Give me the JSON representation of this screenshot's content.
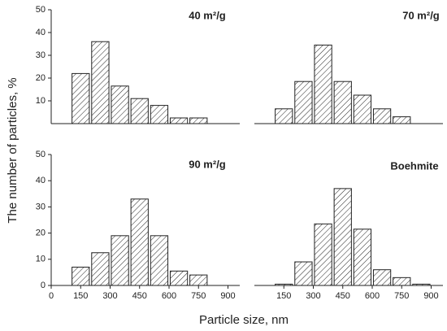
{
  "xlabel": "Particle size, nm",
  "ylabel": "The number of particles, %",
  "chart_data": [
    {
      "type": "bar",
      "title": "40 m²/g",
      "x": [
        150,
        250,
        350,
        450,
        550,
        650,
        750
      ],
      "values": [
        22,
        36,
        16.5,
        11,
        8,
        2.5,
        2.5
      ],
      "xlim": [
        0,
        960
      ],
      "ylim": [
        0,
        50
      ],
      "yticks": [
        10,
        20,
        30,
        40,
        50
      ]
    },
    {
      "type": "bar",
      "title": "70 m²/g",
      "x": [
        150,
        250,
        350,
        450,
        550,
        650,
        750
      ],
      "values": [
        6.5,
        18.5,
        34.5,
        18.5,
        12.5,
        6.5,
        3
      ],
      "xlim": [
        0,
        960
      ],
      "ylim": [
        0,
        50
      ]
    },
    {
      "type": "bar",
      "title": "90 m²/g",
      "x": [
        150,
        250,
        350,
        450,
        550,
        650,
        750
      ],
      "values": [
        7,
        12.5,
        19,
        33,
        19,
        5.5,
        4
      ],
      "xlim": [
        0,
        960
      ],
      "ylim": [
        0,
        50
      ],
      "yticks": [
        0,
        10,
        20,
        30,
        40,
        50
      ],
      "xticks": [
        0,
        150,
        300,
        450,
        600,
        750,
        900
      ]
    },
    {
      "type": "bar",
      "title": "Boehmite",
      "x": [
        150,
        250,
        350,
        450,
        550,
        650,
        750,
        850
      ],
      "values": [
        0.5,
        9,
        23.5,
        37,
        21.5,
        6,
        3,
        0.5
      ],
      "xlim": [
        0,
        960
      ],
      "ylim": [
        0,
        50
      ],
      "xticks": [
        150,
        300,
        450,
        600,
        750,
        900
      ]
    }
  ]
}
